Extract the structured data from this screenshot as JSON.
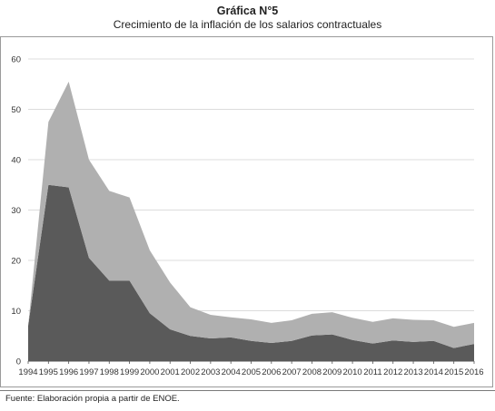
{
  "chart_data": {
    "type": "area",
    "title": "Gráfica N°5",
    "subtitle": "Crecimiento de la inflación de los salarios contractuales",
    "xlabel": "",
    "ylabel": "",
    "ylim": [
      0,
      60
    ],
    "yticks": [
      "0",
      "10",
      "20",
      "30",
      "40",
      "50",
      "60"
    ],
    "x": [
      "1994",
      "1995",
      "1996",
      "1997",
      "1998",
      "1999",
      "2000",
      "2001",
      "2002",
      "2003",
      "2004",
      "2005",
      "2006",
      "2007",
      "2008",
      "2009",
      "2010",
      "2011",
      "2012",
      "2013",
      "2014",
      "2015",
      "2016"
    ],
    "grid": "horizontal",
    "stacked": true,
    "series": [
      {
        "color": "#5a5a5a",
        "values": [
          7.0,
          35.0,
          34.5,
          20.5,
          16.0,
          16.0,
          9.5,
          6.3,
          5.0,
          4.5,
          4.7,
          4.0,
          3.6,
          4.0,
          5.1,
          5.3,
          4.2,
          3.5,
          4.1,
          3.8,
          4.0,
          2.6,
          3.4
        ]
      },
      {
        "color": "#b0b0b0",
        "values": [
          0.0,
          12.5,
          21.0,
          19.5,
          17.8,
          16.5,
          12.5,
          9.3,
          5.7,
          4.7,
          4.0,
          4.3,
          4.0,
          4.1,
          4.3,
          4.4,
          4.4,
          4.3,
          4.4,
          4.4,
          4.1,
          4.2,
          4.2
        ]
      }
    ]
  },
  "source": "Fuente: Elaboración propia a partir de ENOE."
}
